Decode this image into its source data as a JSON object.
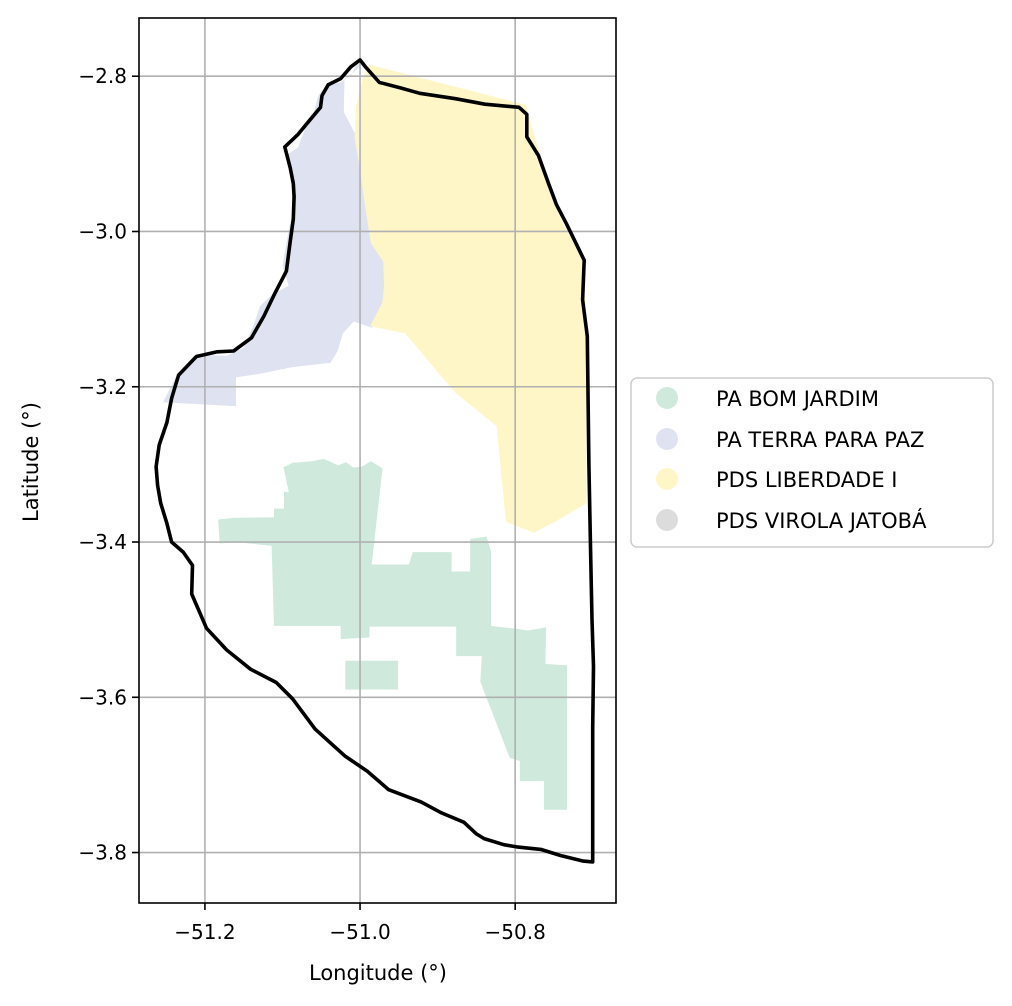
{
  "chart_data": {
    "type": "map",
    "xlabel": "Longitude (°)",
    "ylabel": "Latitude (°)",
    "xlim": [
      -51.285,
      -50.67
    ],
    "ylim": [
      -3.865,
      -2.725
    ],
    "grid": true,
    "xticks": [
      -51.2,
      -51.0,
      -50.8
    ],
    "yticks": [
      -2.8,
      -3.0,
      -3.2,
      -3.4,
      -3.6,
      -3.8
    ],
    "legend_position": "center-right",
    "legend": [
      {
        "label": "PA BOM JARDIM",
        "color": "#cfeadd"
      },
      {
        "label": "PA TERRA PARA PAZ",
        "color": "#dfe3f1"
      },
      {
        "label": "PDS LIBERDADE I",
        "color": "#fff6c8"
      },
      {
        "label": "PDS VIROLA JATOBÁ",
        "color": "#dcdcdc"
      }
    ],
    "regions": [
      {
        "name": "PA BOM JARDIM",
        "color": "#cfeadd",
        "parts": [
          [
            [
              -51.097,
              -3.303
            ],
            [
              -51.087,
              -3.298
            ],
            [
              -51.062,
              -3.296
            ],
            [
              -51.047,
              -3.293
            ],
            [
              -51.028,
              -3.301
            ],
            [
              -51.018,
              -3.297
            ],
            [
              -51.009,
              -3.304
            ],
            [
              -50.998,
              -3.303
            ],
            [
              -50.986,
              -3.296
            ],
            [
              -50.971,
              -3.305
            ],
            [
              -50.985,
              -3.429
            ],
            [
              -50.937,
              -3.429
            ],
            [
              -50.932,
              -3.413
            ],
            [
              -50.882,
              -3.413
            ],
            [
              -50.882,
              -3.438
            ],
            [
              -50.858,
              -3.438
            ],
            [
              -50.858,
              -3.396
            ],
            [
              -50.837,
              -3.393
            ],
            [
              -50.831,
              -3.412
            ],
            [
              -50.831,
              -3.508
            ],
            [
              -50.796,
              -3.512
            ],
            [
              -50.784,
              -3.514
            ],
            [
              -50.76,
              -3.51
            ],
            [
              -50.761,
              -3.557
            ],
            [
              -50.733,
              -3.559
            ],
            [
              -50.733,
              -3.745
            ],
            [
              -50.763,
              -3.745
            ],
            [
              -50.763,
              -3.708
            ],
            [
              -50.794,
              -3.708
            ],
            [
              -50.794,
              -3.682
            ],
            [
              -50.808,
              -3.678
            ],
            [
              -50.807,
              -3.678
            ],
            [
              -50.845,
              -3.58
            ],
            [
              -50.843,
              -3.547
            ],
            [
              -50.876,
              -3.547
            ],
            [
              -50.876,
              -3.509
            ],
            [
              -50.988,
              -3.509
            ],
            [
              -50.988,
              -3.523
            ],
            [
              -51.025,
              -3.525
            ],
            [
              -51.025,
              -3.508
            ],
            [
              -51.111,
              -3.508
            ],
            [
              -51.114,
              -3.405
            ],
            [
              -51.162,
              -3.4
            ],
            [
              -51.181,
              -3.402
            ],
            [
              -51.183,
              -3.371
            ],
            [
              -51.163,
              -3.369
            ],
            [
              -51.111,
              -3.368
            ],
            [
              -51.111,
              -3.357
            ],
            [
              -51.098,
              -3.357
            ],
            [
              -51.098,
              -3.335
            ],
            [
              -51.081,
              -3.337
            ],
            [
              -51.081,
              -3.346
            ],
            [
              -51.09,
              -3.344
            ],
            [
              -51.099,
              -3.303
            ]
          ],
          [
            [
              -51.019,
              -3.553
            ],
            [
              -50.951,
              -3.553
            ],
            [
              -50.951,
              -3.59
            ],
            [
              -51.019,
              -3.59
            ]
          ]
        ]
      },
      {
        "name": "PA TERRA PARA PAZ",
        "color": "#dfe3f1",
        "parts": [
          [
            [
              -50.993,
              -2.781
            ],
            [
              -51.005,
              -2.785
            ],
            [
              -51.012,
              -2.8
            ],
            [
              -51.026,
              -2.808
            ],
            [
              -51.044,
              -2.812
            ],
            [
              -51.054,
              -2.825
            ],
            [
              -51.06,
              -2.848
            ],
            [
              -51.071,
              -2.868
            ],
            [
              -51.08,
              -2.892
            ],
            [
              -51.094,
              -2.901
            ],
            [
              -51.088,
              -2.94
            ],
            [
              -51.086,
              -2.97
            ],
            [
              -51.093,
              -3.004
            ],
            [
              -51.1,
              -3.044
            ],
            [
              -51.092,
              -3.07
            ],
            [
              -51.113,
              -3.081
            ],
            [
              -51.129,
              -3.096
            ],
            [
              -51.137,
              -3.12
            ],
            [
              -51.15,
              -3.15
            ],
            [
              -51.172,
              -3.16
            ],
            [
              -51.205,
              -3.159
            ],
            [
              -51.236,
              -3.185
            ],
            [
              -51.254,
              -3.22
            ],
            [
              -51.16,
              -3.225
            ],
            [
              -51.16,
              -3.188
            ],
            [
              -51.128,
              -3.183
            ],
            [
              -51.088,
              -3.175
            ],
            [
              -51.038,
              -3.169
            ],
            [
              -51.029,
              -3.154
            ],
            [
              -51.022,
              -3.131
            ],
            [
              -51.008,
              -3.116
            ],
            [
              -50.985,
              -3.124
            ],
            [
              -50.957,
              -3.106
            ],
            [
              -50.949,
              -3.074
            ],
            [
              -50.947,
              -3.03
            ],
            [
              -50.97,
              -2.984
            ],
            [
              -50.992,
              -2.918
            ],
            [
              -51.005,
              -2.877
            ],
            [
              -51.021,
              -2.846
            ],
            [
              -51.02,
              -2.804
            ],
            [
              -51.0,
              -2.788
            ]
          ]
        ]
      },
      {
        "name": "PDS LIBERDADE I",
        "color": "#fff6c8",
        "parts": [
          [
            [
              -50.988,
              -2.785
            ],
            [
              -50.786,
              -2.837
            ],
            [
              -50.78,
              -2.86
            ],
            [
              -50.765,
              -2.909
            ],
            [
              -50.74,
              -2.987
            ],
            [
              -50.713,
              -3.035
            ],
            [
              -50.708,
              -3.122
            ],
            [
              -50.708,
              -3.35
            ],
            [
              -50.745,
              -3.372
            ],
            [
              -50.776,
              -3.388
            ],
            [
              -50.812,
              -3.374
            ],
            [
              -50.824,
              -3.251
            ],
            [
              -50.878,
              -3.207
            ],
            [
              -50.942,
              -3.131
            ],
            [
              -50.987,
              -3.122
            ],
            [
              -50.971,
              -3.091
            ],
            [
              -50.969,
              -3.07
            ],
            [
              -50.97,
              -3.039
            ],
            [
              -50.986,
              -3.015
            ],
            [
              -50.994,
              -2.964
            ],
            [
              -51.0,
              -2.92
            ],
            [
              -51.007,
              -2.88
            ],
            [
              -51.005,
              -2.838
            ],
            [
              -50.996,
              -2.801
            ]
          ]
        ]
      }
    ],
    "boundary": [
      [
        -51.0,
        -2.779
      ],
      [
        -50.993,
        -2.788
      ],
      [
        -50.975,
        -2.808
      ],
      [
        -50.948,
        -2.815
      ],
      [
        -50.923,
        -2.822
      ],
      [
        -50.877,
        -2.829
      ],
      [
        -50.839,
        -2.836
      ],
      [
        -50.795,
        -2.84
      ],
      [
        -50.785,
        -2.849
      ],
      [
        -50.785,
        -2.878
      ],
      [
        -50.77,
        -2.902
      ],
      [
        -50.757,
        -2.938
      ],
      [
        -50.747,
        -2.965
      ],
      [
        -50.734,
        -2.99
      ],
      [
        -50.711,
        -3.037
      ],
      [
        -50.713,
        -3.088
      ],
      [
        -50.707,
        -3.135
      ],
      [
        -50.705,
        -3.3
      ],
      [
        -50.703,
        -3.4
      ],
      [
        -50.701,
        -3.5
      ],
      [
        -50.699,
        -3.56
      ],
      [
        -50.7,
        -3.64
      ],
      [
        -50.7,
        -3.72
      ],
      [
        -50.7,
        -3.812
      ],
      [
        -50.712,
        -3.811
      ],
      [
        -50.741,
        -3.804
      ],
      [
        -50.767,
        -3.796
      ],
      [
        -50.796,
        -3.793
      ],
      [
        -50.814,
        -3.79
      ],
      [
        -50.84,
        -3.782
      ],
      [
        -50.85,
        -3.776
      ],
      [
        -50.866,
        -3.761
      ],
      [
        -50.895,
        -3.749
      ],
      [
        -50.921,
        -3.735
      ],
      [
        -50.963,
        -3.719
      ],
      [
        -50.991,
        -3.695
      ],
      [
        -51.019,
        -3.676
      ],
      [
        -51.058,
        -3.641
      ],
      [
        -51.087,
        -3.602
      ],
      [
        -51.108,
        -3.581
      ],
      [
        -51.141,
        -3.564
      ],
      [
        -51.172,
        -3.539
      ],
      [
        -51.198,
        -3.511
      ],
      [
        -51.217,
        -3.467
      ],
      [
        -51.216,
        -3.43
      ],
      [
        -51.228,
        -3.413
      ],
      [
        -51.243,
        -3.4
      ],
      [
        -51.249,
        -3.376
      ],
      [
        -51.257,
        -3.35
      ],
      [
        -51.261,
        -3.327
      ],
      [
        -51.263,
        -3.303
      ],
      [
        -51.259,
        -3.275
      ],
      [
        -51.249,
        -3.246
      ],
      [
        -51.243,
        -3.215
      ],
      [
        -51.234,
        -3.185
      ],
      [
        -51.211,
        -3.161
      ],
      [
        -51.184,
        -3.155
      ],
      [
        -51.163,
        -3.154
      ],
      [
        -51.14,
        -3.137
      ],
      [
        -51.124,
        -3.109
      ],
      [
        -51.111,
        -3.082
      ],
      [
        -51.095,
        -3.051
      ],
      [
        -51.09,
        -3.013
      ],
      [
        -51.086,
        -2.984
      ],
      [
        -51.085,
        -2.955
      ],
      [
        -51.086,
        -2.938
      ],
      [
        -51.09,
        -2.918
      ],
      [
        -51.097,
        -2.891
      ],
      [
        -51.08,
        -2.875
      ],
      [
        -51.066,
        -2.858
      ],
      [
        -51.051,
        -2.84
      ],
      [
        -51.049,
        -2.825
      ],
      [
        -51.041,
        -2.811
      ],
      [
        -51.025,
        -2.803
      ],
      [
        -51.012,
        -2.788
      ],
      [
        -51.0,
        -2.779
      ]
    ]
  }
}
